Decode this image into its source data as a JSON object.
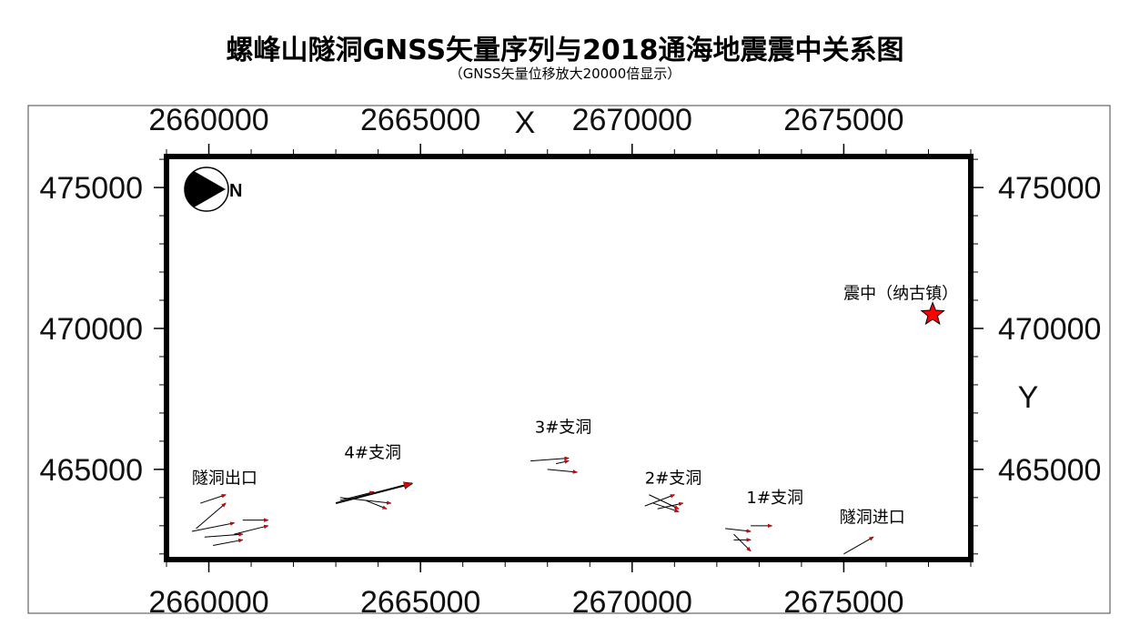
{
  "title": "螺峰山隧洞GNSS矢量序列与2018通海地震震中关系图",
  "subtitle": "（GNSS矢量位移放大20000倍显示）",
  "chart_data": {
    "type": "scatter",
    "x_axis_label": "X",
    "y_axis_label": "Y",
    "xlim": [
      2659000,
      2678000
    ],
    "ylim": [
      461800,
      476100
    ],
    "x_ticks": [
      "2660000",
      "2665000",
      "2670000",
      "2675000"
    ],
    "y_ticks": [
      "465000",
      "470000",
      "475000"
    ],
    "x_tick_values": [
      2660000,
      2665000,
      2670000,
      2675000
    ],
    "y_tick_values": [
      465000,
      470000,
      475000
    ],
    "north_label": "N",
    "epicenter": {
      "label": "震中（纳古镇）",
      "x": 2677100,
      "y": 470500,
      "color": "#ff0000"
    },
    "sites": [
      {
        "label": "隧洞出口",
        "x": 2659600,
        "y": 464500
      },
      {
        "label": "4#支洞",
        "x": 2663200,
        "y": 465400
      },
      {
        "label": "3#支洞",
        "x": 2667700,
        "y": 466300
      },
      {
        "label": "2#支洞",
        "x": 2670300,
        "y": 464500
      },
      {
        "label": "1#支洞",
        "x": 2672700,
        "y": 463800
      },
      {
        "label": "隧洞进口",
        "x": 2674900,
        "y": 463100
      }
    ],
    "vectors": [
      {
        "x1": 2659800,
        "y1": 463800,
        "x2": 2660400,
        "y2": 464100
      },
      {
        "x1": 2659700,
        "y1": 462900,
        "x2": 2660400,
        "y2": 463800
      },
      {
        "x1": 2659600,
        "y1": 462800,
        "x2": 2660600,
        "y2": 463100
      },
      {
        "x1": 2659900,
        "y1": 462600,
        "x2": 2660800,
        "y2": 462700
      },
      {
        "x1": 2660100,
        "y1": 462300,
        "x2": 2660800,
        "y2": 462500
      },
      {
        "x1": 2660600,
        "y1": 462700,
        "x2": 2661400,
        "y2": 463000
      },
      {
        "x1": 2660800,
        "y1": 463200,
        "x2": 2661400,
        "y2": 463200
      },
      {
        "x1": 2663000,
        "y1": 463800,
        "x2": 2664800,
        "y2": 464500
      },
      {
        "x1": 2663100,
        "y1": 463900,
        "x2": 2663900,
        "y2": 464200
      },
      {
        "x1": 2663100,
        "y1": 464000,
        "x2": 2664300,
        "y2": 463800
      },
      {
        "x1": 2663700,
        "y1": 463900,
        "x2": 2664200,
        "y2": 463600
      },
      {
        "x1": 2667600,
        "y1": 465300,
        "x2": 2668500,
        "y2": 465400
      },
      {
        "x1": 2668000,
        "y1": 465000,
        "x2": 2668700,
        "y2": 464900
      },
      {
        "x1": 2668200,
        "y1": 465200,
        "x2": 2668500,
        "y2": 465300
      },
      {
        "x1": 2670300,
        "y1": 463700,
        "x2": 2671000,
        "y2": 464100
      },
      {
        "x1": 2670400,
        "y1": 464100,
        "x2": 2671100,
        "y2": 463600
      },
      {
        "x1": 2670500,
        "y1": 463800,
        "x2": 2671100,
        "y2": 463500
      },
      {
        "x1": 2670600,
        "y1": 463600,
        "x2": 2671200,
        "y2": 463800
      },
      {
        "x1": 2672200,
        "y1": 462900,
        "x2": 2672800,
        "y2": 462800
      },
      {
        "x1": 2672800,
        "y1": 463000,
        "x2": 2673300,
        "y2": 463000
      },
      {
        "x1": 2672400,
        "y1": 462500,
        "x2": 2672800,
        "y2": 462500
      },
      {
        "x1": 2672400,
        "y1": 462700,
        "x2": 2672800,
        "y2": 462100
      },
      {
        "x1": 2675000,
        "y1": 462000,
        "x2": 2675700,
        "y2": 462600
      }
    ]
  }
}
